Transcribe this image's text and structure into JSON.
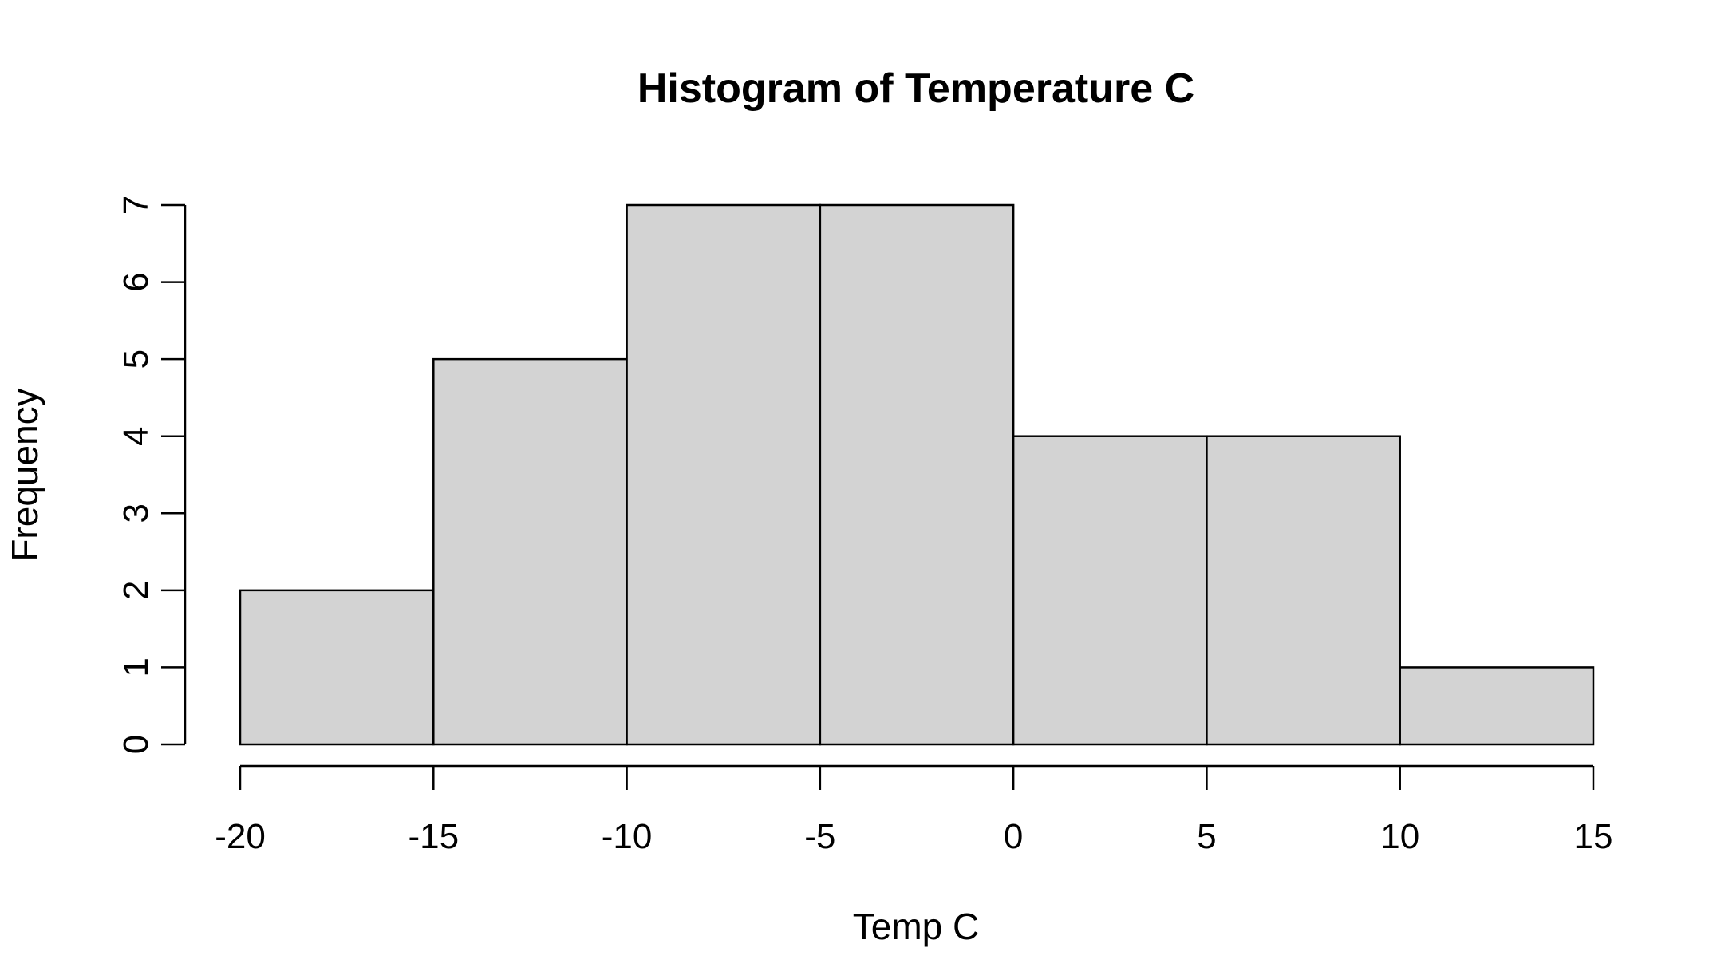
{
  "chart_data": {
    "type": "bar",
    "subtype": "histogram",
    "title": "Histogram of Temperature C",
    "xlabel": "Temp C",
    "ylabel": "Frequency",
    "bins": [
      {
        "start": -20,
        "end": -15,
        "count": 2
      },
      {
        "start": -15,
        "end": -10,
        "count": 5
      },
      {
        "start": -10,
        "end": -5,
        "count": 7
      },
      {
        "start": -5,
        "end": 0,
        "count": 7
      },
      {
        "start": 0,
        "end": 5,
        "count": 4
      },
      {
        "start": 5,
        "end": 10,
        "count": 4
      },
      {
        "start": 10,
        "end": 15,
        "count": 1
      }
    ],
    "xlim": [
      -20,
      15
    ],
    "ylim": [
      0,
      7
    ],
    "x_ticks": [
      "-20",
      "-15",
      "-10",
      "-5",
      "0",
      "5",
      "10",
      "15"
    ],
    "y_ticks": [
      "0",
      "1",
      "2",
      "3",
      "4",
      "5",
      "6",
      "7"
    ],
    "grid": false,
    "legend": "none",
    "bar_color": "#d3d3d3",
    "edge_color": "#000000"
  }
}
